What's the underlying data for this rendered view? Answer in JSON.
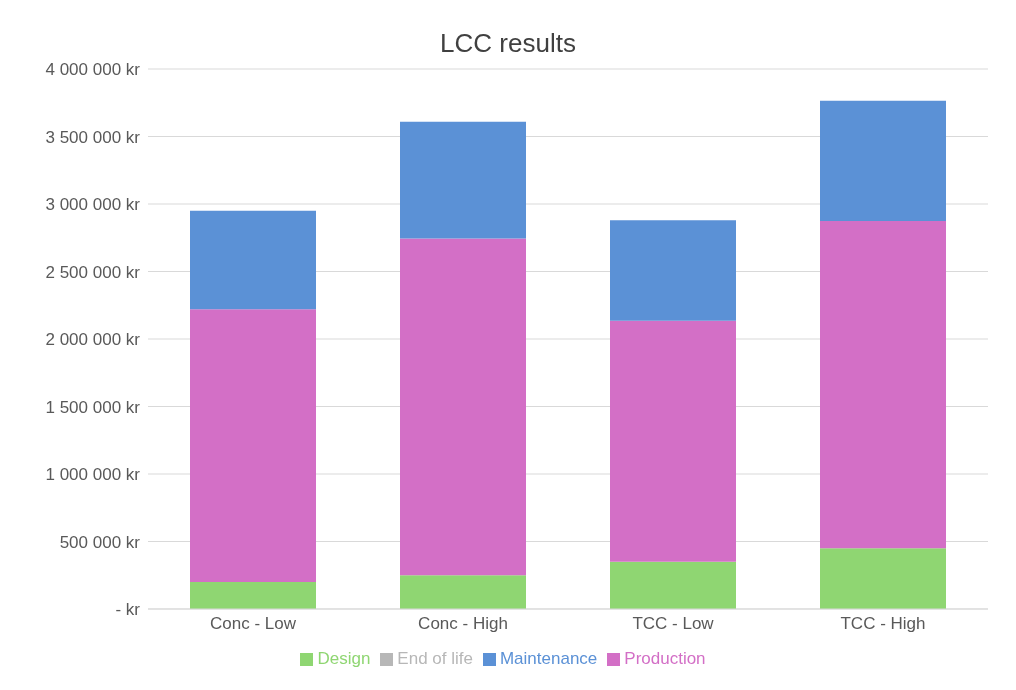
{
  "chart_data": {
    "type": "bar",
    "title": "LCC results",
    "stacked": true,
    "categories": [
      "Conc - Low",
      "Conc - High",
      "TCC - Low",
      "TCC - High"
    ],
    "series": [
      {
        "name": "Design",
        "color": "#8fd672",
        "values": [
          200000,
          250000,
          350000,
          450000
        ]
      },
      {
        "name": "Production",
        "color": "#d36fc6",
        "values": [
          2020000,
          2495000,
          1785000,
          2425000
        ]
      },
      {
        "name": "Maintenance",
        "color": "#5b91d6",
        "values": [
          730000,
          865000,
          745000,
          890000
        ]
      },
      {
        "name": "End of life",
        "color": "#b7b7b7",
        "values": [
          0,
          0,
          0,
          0
        ]
      }
    ],
    "ylim": [
      0,
      4000000
    ],
    "yticks": [
      {
        "value": 0,
        "label": "-  kr"
      },
      {
        "value": 500000,
        "label": "500 000 kr"
      },
      {
        "value": 1000000,
        "label": "1 000 000 kr"
      },
      {
        "value": 1500000,
        "label": "1 500 000 kr"
      },
      {
        "value": 2000000,
        "label": "2 000 000 kr"
      },
      {
        "value": 2500000,
        "label": "2 500 000 kr"
      },
      {
        "value": 3000000,
        "label": "3 000 000 kr"
      },
      {
        "value": 3500000,
        "label": "3 500 000 kr"
      },
      {
        "value": 4000000,
        "label": "4 000 000 kr"
      }
    ],
    "grid": "y",
    "legend": "bottom"
  }
}
